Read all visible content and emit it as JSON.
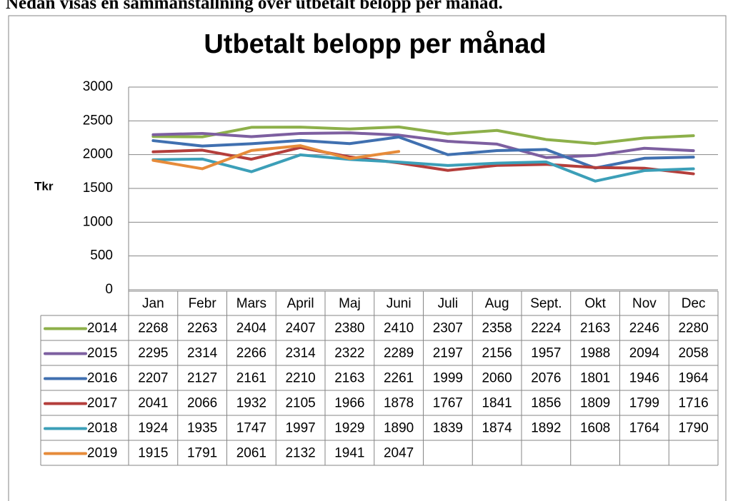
{
  "intro": "Nedan visas en sammanställning över utbetalt belopp per månad.",
  "chart_data": {
    "type": "line",
    "title": "Utbetalt belopp per månad",
    "y_label": "Tkr",
    "categories": [
      "Jan",
      "Febr",
      "Mars",
      "April",
      "Maj",
      "Juni",
      "Juli",
      "Aug",
      "Sept.",
      "Okt",
      "Nov",
      "Dec"
    ],
    "ylim": [
      0,
      3000
    ],
    "yticks": [
      0,
      500,
      1000,
      1500,
      2000,
      2500,
      3000
    ],
    "grid": true,
    "series": [
      {
        "name": "2014",
        "color": "#8db04a",
        "values": [
          2268,
          2263,
          2404,
          2407,
          2380,
          2410,
          2307,
          2358,
          2224,
          2163,
          2246,
          2280
        ]
      },
      {
        "name": "2015",
        "color": "#7d5fa0",
        "values": [
          2295,
          2314,
          2266,
          2314,
          2322,
          2289,
          2197,
          2156,
          1957,
          1988,
          2094,
          2058
        ]
      },
      {
        "name": "2016",
        "color": "#4070b0",
        "values": [
          2207,
          2127,
          2161,
          2210,
          2163,
          2261,
          1999,
          2060,
          2076,
          1801,
          1946,
          1964
        ]
      },
      {
        "name": "2017",
        "color": "#b43e3b",
        "values": [
          2041,
          2066,
          1932,
          2105,
          1966,
          1878,
          1767,
          1841,
          1856,
          1809,
          1799,
          1716
        ]
      },
      {
        "name": "2018",
        "color": "#3c9fb8",
        "values": [
          1924,
          1935,
          1747,
          1997,
          1929,
          1890,
          1839,
          1874,
          1892,
          1608,
          1764,
          1790
        ]
      },
      {
        "name": "2019",
        "color": "#e68b3a",
        "values": [
          1915,
          1791,
          2061,
          2132,
          1941,
          2047,
          null,
          null,
          null,
          null,
          null,
          null
        ]
      }
    ]
  }
}
